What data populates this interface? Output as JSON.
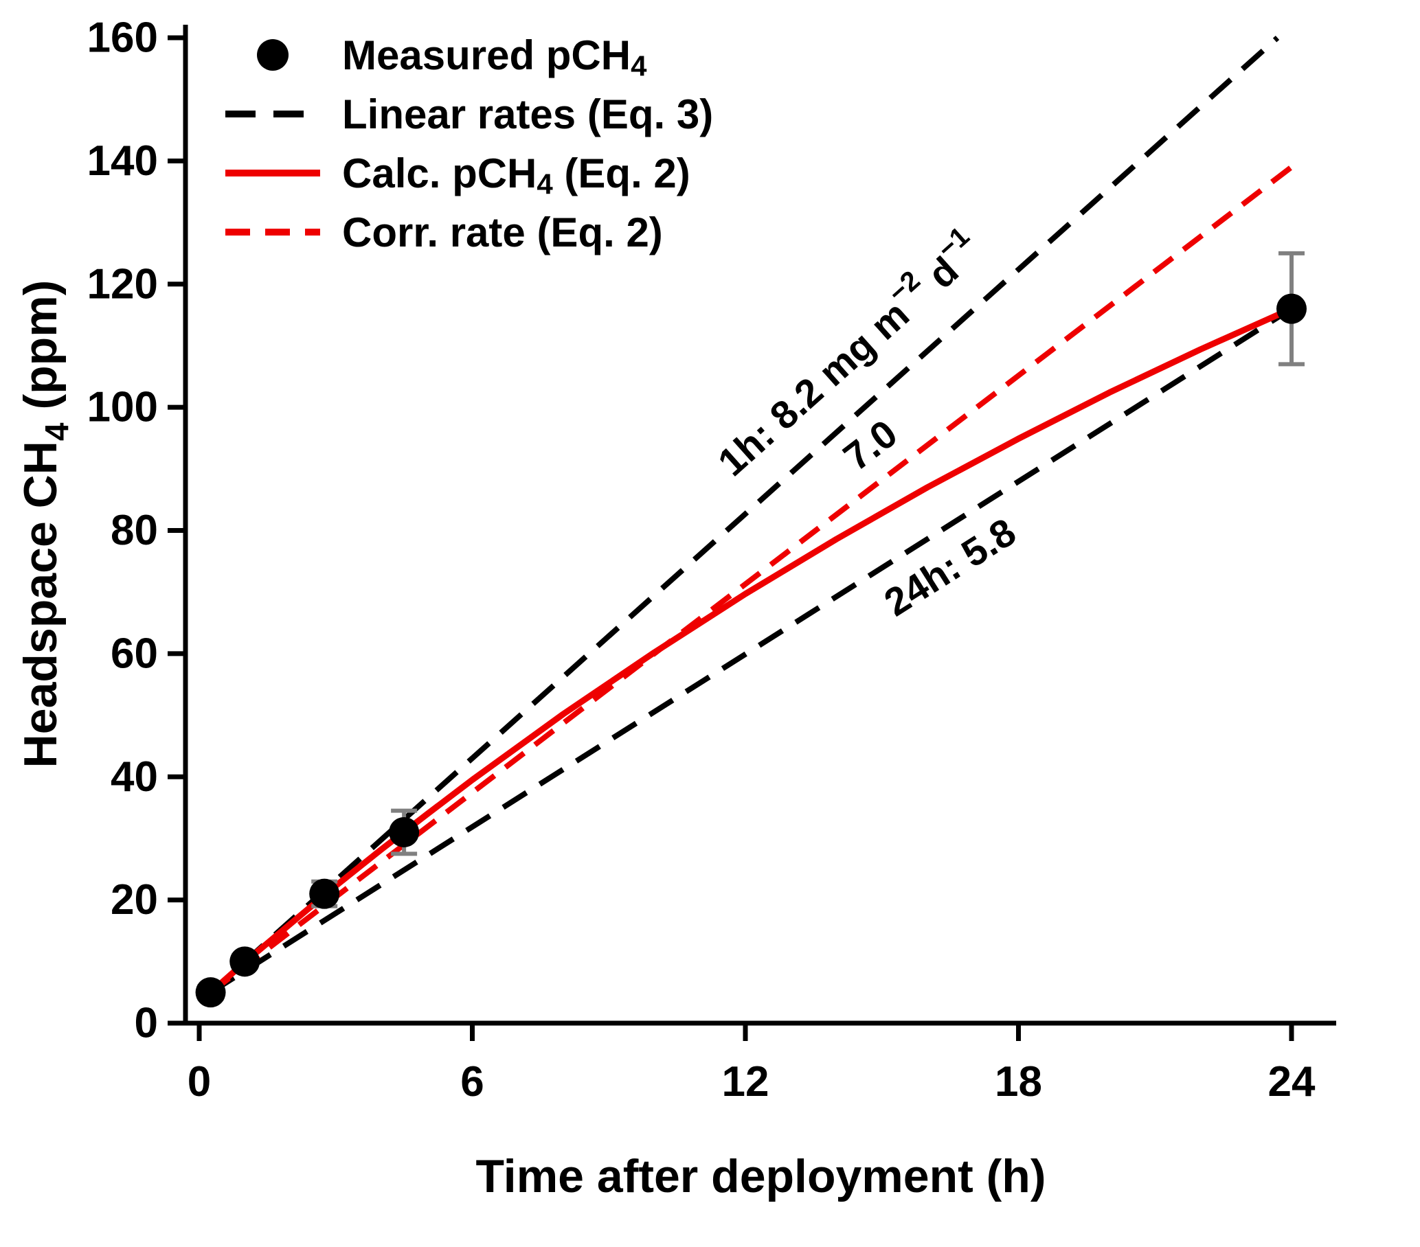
{
  "figure": {
    "background": "#ffffff"
  },
  "chart_data": {
    "type": "scatter",
    "title": "",
    "xlabel": "Time after deployment (h)",
    "ylabel_segments": [
      {
        "t": "Headspace CH"
      },
      {
        "t": "4",
        "style": "sub"
      },
      {
        "t": " (ppm)"
      }
    ],
    "xlim": [
      0,
      24
    ],
    "ylim": [
      0,
      160
    ],
    "xtick_values": [
      0,
      6,
      12,
      18,
      24
    ],
    "ytick_values": [
      0,
      20,
      40,
      60,
      80,
      100,
      120,
      140,
      160
    ],
    "grid": false,
    "legend_position": "top-left-inside",
    "colors": {
      "black": "#000000",
      "red": "#ee0000",
      "gray": "#808080"
    },
    "measured_points": {
      "name": "measured-pch4",
      "x": [
        0.25,
        1,
        2.75,
        4.5,
        24
      ],
      "y": [
        5,
        10,
        21,
        31,
        116
      ],
      "yerr": [
        1,
        1,
        2,
        3.5,
        9
      ],
      "marker_radius": 22
    },
    "series": [
      {
        "name": "linear-rate-1h",
        "color": "black",
        "dash": "40 23",
        "width": 8,
        "x": [
          0.25,
          23.69
        ],
        "y": [
          5,
          160
        ]
      },
      {
        "name": "linear-rate-24h",
        "color": "black",
        "dash": "40 23",
        "width": 8,
        "x": [
          0.25,
          24
        ],
        "y": [
          5,
          116
        ]
      },
      {
        "name": "corr-rate",
        "color": "red",
        "dash": "34 20",
        "width": 8,
        "x": [
          0.25,
          24
        ],
        "y": [
          5,
          139
        ]
      },
      {
        "name": "calc-pch4",
        "color": "red",
        "dash": null,
        "width": 9,
        "x": [
          0.25,
          1,
          2,
          3,
          4,
          5,
          6,
          8,
          10,
          12,
          14,
          16,
          18,
          20,
          22,
          24
        ],
        "y": [
          5,
          9.9,
          16.1,
          22.3,
          28.2,
          33.9,
          39.5,
          50.2,
          60.2,
          69.7,
          78.6,
          87.0,
          94.9,
          102.4,
          109.4,
          116
        ]
      }
    ],
    "annotations": [
      {
        "name": "rate-1h-label",
        "color": "black",
        "angle": -41.8,
        "at": [
          14.3,
          108.3
        ],
        "segments": [
          {
            "t": "1h: 8.2 mg m"
          },
          {
            "t": "−2",
            "style": "sup"
          },
          {
            "t": " d"
          },
          {
            "t": "−1",
            "style": "sup"
          }
        ]
      },
      {
        "name": "corr-rate-label",
        "color": "red",
        "angle": -37.4,
        "at": [
          14.75,
          93.8
        ],
        "segments": [
          {
            "t": "7.0"
          }
        ]
      },
      {
        "name": "rate-24h-label",
        "color": "black",
        "angle": -32.3,
        "at": [
          16.5,
          74.0
        ],
        "segments": [
          {
            "t": "24h: 5.8"
          }
        ]
      }
    ],
    "legend": [
      {
        "name": "legend-measured",
        "marker": "circle",
        "dash": null,
        "color": "black",
        "segments": [
          {
            "t": "Measured pCH"
          },
          {
            "t": "4",
            "style": "sub"
          }
        ]
      },
      {
        "name": "legend-linear-rates",
        "marker": "line",
        "dash": "44 26",
        "color": "black",
        "segments": [
          {
            "t": "Linear rates (Eq. 3)"
          }
        ]
      },
      {
        "name": "legend-calc-pch4",
        "marker": "line",
        "dash": null,
        "color": "red",
        "segments": [
          {
            "t": "Calc. pCH"
          },
          {
            "t": "4",
            "style": "sub"
          },
          {
            "t": " (Eq. 2)"
          }
        ]
      },
      {
        "name": "legend-corr-rate",
        "marker": "line",
        "dash": "36 22",
        "color": "red",
        "segments": [
          {
            "t": "Corr. rate (Eq. 2)"
          }
        ]
      }
    ]
  }
}
